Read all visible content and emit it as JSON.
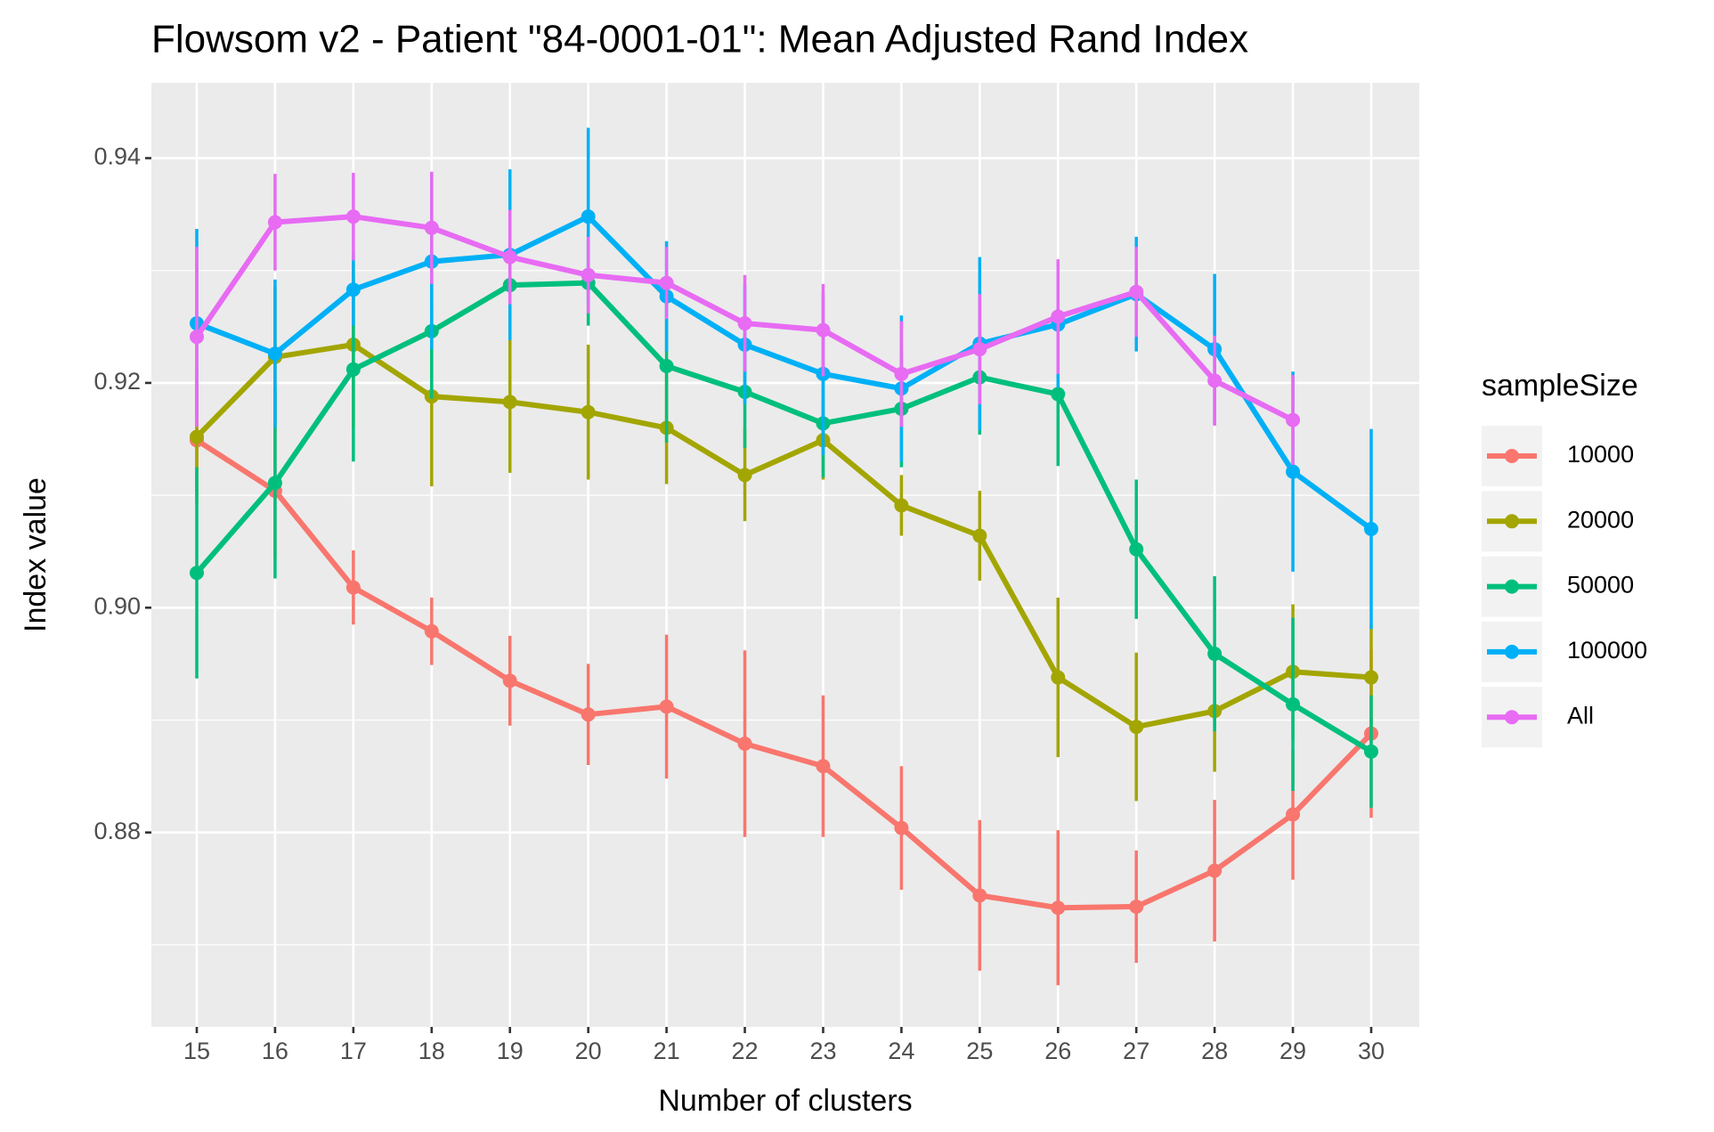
{
  "chart_data": {
    "type": "line",
    "title": "Flowsom v2 - Patient \"84-0001-01\": Mean Adjusted Rand Index",
    "x_label": "Number of clusters",
    "y_label": "Index value",
    "legend_title": "sampleSize",
    "legend_position": "right",
    "grid": true,
    "background": "#ebebeb",
    "categories": [
      15,
      16,
      17,
      18,
      19,
      20,
      21,
      22,
      23,
      24,
      25,
      26,
      27,
      28,
      29,
      30
    ],
    "ylim": [
      0.8627,
      0.9467
    ],
    "yticks": [
      0.88,
      {
        "value": 0.9,
        "label": "0.90"
      },
      0.92,
      0.94
    ],
    "yminor_ticks": [
      0.87,
      0.89,
      0.91,
      0.93
    ],
    "series": [
      {
        "name": "10000",
        "color": "#f8766d",
        "values": [
          0.9149,
          0.9104,
          0.9018,
          0.8979,
          0.8935,
          0.8905,
          0.8912,
          0.8879,
          0.8859,
          0.8804,
          0.8744,
          0.8733,
          0.8734,
          0.8766,
          0.8816,
          0.8888
        ],
        "errors": [
          0.005,
          0.006,
          0.0033,
          0.003,
          0.004,
          0.0045,
          0.0064,
          0.0083,
          0.0063,
          0.0055,
          0.0067,
          0.0069,
          0.005,
          0.0063,
          0.0058,
          0.0075
        ]
      },
      {
        "name": "20000",
        "color": "#a3a500",
        "values": [
          0.9152,
          0.9223,
          0.9234,
          0.9188,
          0.9183,
          0.9174,
          0.916,
          0.9118,
          0.9149,
          0.9091,
          0.9064,
          0.8938,
          0.8894,
          0.8908,
          0.8943,
          0.8938
        ],
        "errors": [
          0.006,
          0.0063,
          0.0073,
          0.008,
          0.0063,
          0.006,
          0.005,
          0.0041,
          0.0035,
          0.0027,
          0.004,
          0.0071,
          0.0066,
          0.0054,
          0.006,
          0.0047
        ]
      },
      {
        "name": "50000",
        "color": "#00bf7d",
        "values": [
          0.9031,
          0.9111,
          0.9212,
          0.9246,
          0.9287,
          0.9289,
          0.9215,
          0.9192,
          0.9164,
          0.9177,
          0.9205,
          0.919,
          0.9052,
          0.8959,
          0.8914,
          0.8872
        ],
        "errors": [
          0.0094,
          0.0085,
          0.0082,
          0.006,
          0.004,
          0.0038,
          0.0068,
          0.005,
          0.0048,
          0.0052,
          0.0051,
          0.0064,
          0.0062,
          0.0069,
          0.0077,
          0.005
        ]
      },
      {
        "name": "100000",
        "color": "#00b0f6",
        "values": [
          0.9253,
          0.9226,
          0.9283,
          0.9308,
          0.9314,
          0.9348,
          0.9277,
          0.9234,
          0.9208,
          0.9195,
          0.9235,
          0.9252,
          0.9279,
          0.923,
          0.9121,
          0.907
        ],
        "errors": [
          0.0084,
          0.0066,
          0.0032,
          0.0078,
          0.0076,
          0.0079,
          0.0049,
          0.0053,
          0.0072,
          0.0065,
          0.0077,
          0.0056,
          0.0051,
          0.0067,
          0.0089,
          0.0089
        ]
      },
      {
        "name": "All",
        "color": "#e76bf3",
        "values": [
          0.9241,
          0.9343,
          0.9348,
          0.9338,
          0.9312,
          0.9296,
          0.9289,
          0.9253,
          0.9247,
          0.9208,
          0.923,
          0.9259,
          0.9281,
          0.9202,
          0.9167,
          null
        ],
        "errors": [
          0.008,
          0.0043,
          0.0039,
          0.005,
          0.0042,
          0.0034,
          0.0032,
          0.0043,
          0.0041,
          0.0047,
          0.0049,
          0.0051,
          0.004,
          0.004,
          0.004,
          null
        ]
      }
    ]
  }
}
